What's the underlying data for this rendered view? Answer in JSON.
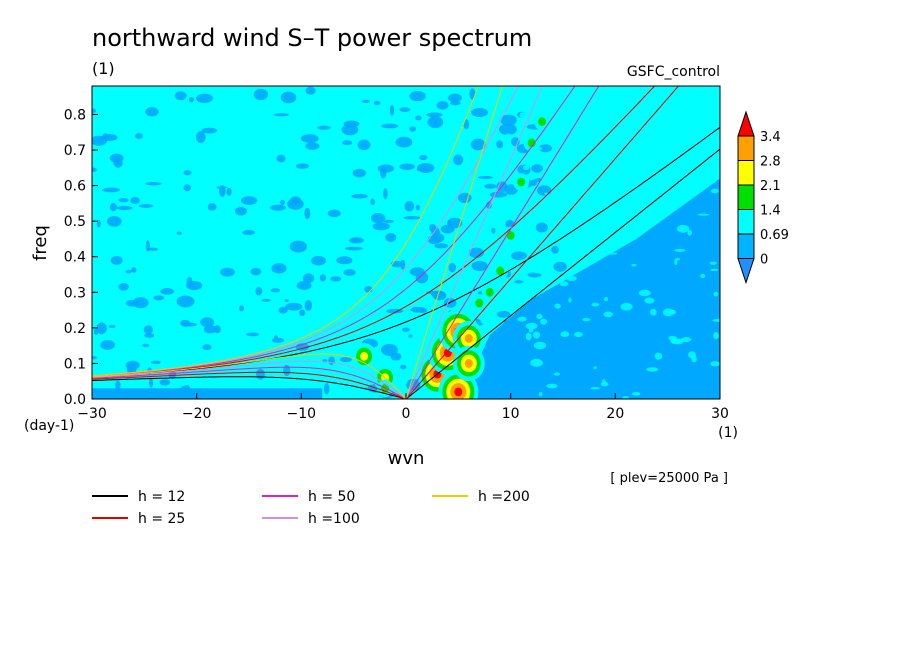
{
  "chart_data": {
    "type": "heatmap",
    "title": "northward wind S–T power spectrum",
    "subtitle": "(1)",
    "case_label": "GSFC_control",
    "xlabel": "wvn",
    "ylabel": "freq",
    "x_unit": "(1)",
    "y_unit": "(day-1)",
    "annotation": "[ plev=25000 Pa ]",
    "xlim": [
      -30,
      30
    ],
    "ylim": [
      0,
      0.88
    ],
    "x_ticks": [
      "−30",
      "−20",
      "−10",
      "0",
      "10",
      "20",
      "30"
    ],
    "x_tick_values": [
      -30,
      -20,
      -10,
      0,
      10,
      20,
      30
    ],
    "y_ticks": [
      "0.0",
      "0.1",
      "0.2",
      "0.3",
      "0.4",
      "0.5",
      "0.6",
      "0.7",
      "0.8"
    ],
    "y_tick_values": [
      0,
      0.1,
      0.2,
      0.3,
      0.4,
      0.5,
      0.6,
      0.7,
      0.8
    ],
    "colorbar": {
      "labels": [
        "0",
        "0.69",
        "1.4",
        "2.1",
        "2.8",
        "3.4"
      ],
      "colors": [
        "#1e90ff",
        "#00b4ff",
        "#00ffff",
        "#00e000",
        "#ffff00",
        "#ffa000",
        "#ff0000"
      ]
    },
    "field_colors": {
      "background": "#00a8ff",
      "level1": "#00ffff",
      "level2": "#00e000",
      "level3": "#ffff00",
      "level4": "#ffa000",
      "level5": "#ff0000"
    },
    "dispersion_curves": [
      {
        "label": "h = 12",
        "h": 12,
        "color": "#000000"
      },
      {
        "label": "h = 25",
        "h": 25,
        "color": "#e00000"
      },
      {
        "label": "h = 50",
        "h": 50,
        "color": "#e020c0"
      },
      {
        "label": "h =100",
        "h": 100,
        "color": "#d090e0"
      },
      {
        "label": "h =200",
        "h": 200,
        "color": "#e8d000"
      }
    ],
    "peaks": [
      {
        "x": -4,
        "y": 0.12,
        "level": 3
      },
      {
        "x": -2,
        "y": 0.06,
        "level": 3
      },
      {
        "x": 3,
        "y": 0.07,
        "level": 5
      },
      {
        "x": 4,
        "y": 0.13,
        "level": 5
      },
      {
        "x": 5,
        "y": 0.19,
        "level": 5
      },
      {
        "x": 6,
        "y": 0.17,
        "level": 4
      },
      {
        "x": 5,
        "y": 0.02,
        "level": 5
      },
      {
        "x": 6,
        "y": 0.1,
        "level": 4
      },
      {
        "x": 7,
        "y": 0.27,
        "level": 2
      },
      {
        "x": 9,
        "y": 0.36,
        "level": 2
      },
      {
        "x": 10,
        "y": 0.46,
        "level": 2
      },
      {
        "x": 11,
        "y": 0.61,
        "level": 2
      },
      {
        "x": 12,
        "y": 0.72,
        "level": 2
      },
      {
        "x": 13,
        "y": 0.78,
        "level": 2
      },
      {
        "x": -2,
        "y": 0.03,
        "level": 2
      },
      {
        "x": 8,
        "y": 0.3,
        "level": 2
      }
    ]
  }
}
